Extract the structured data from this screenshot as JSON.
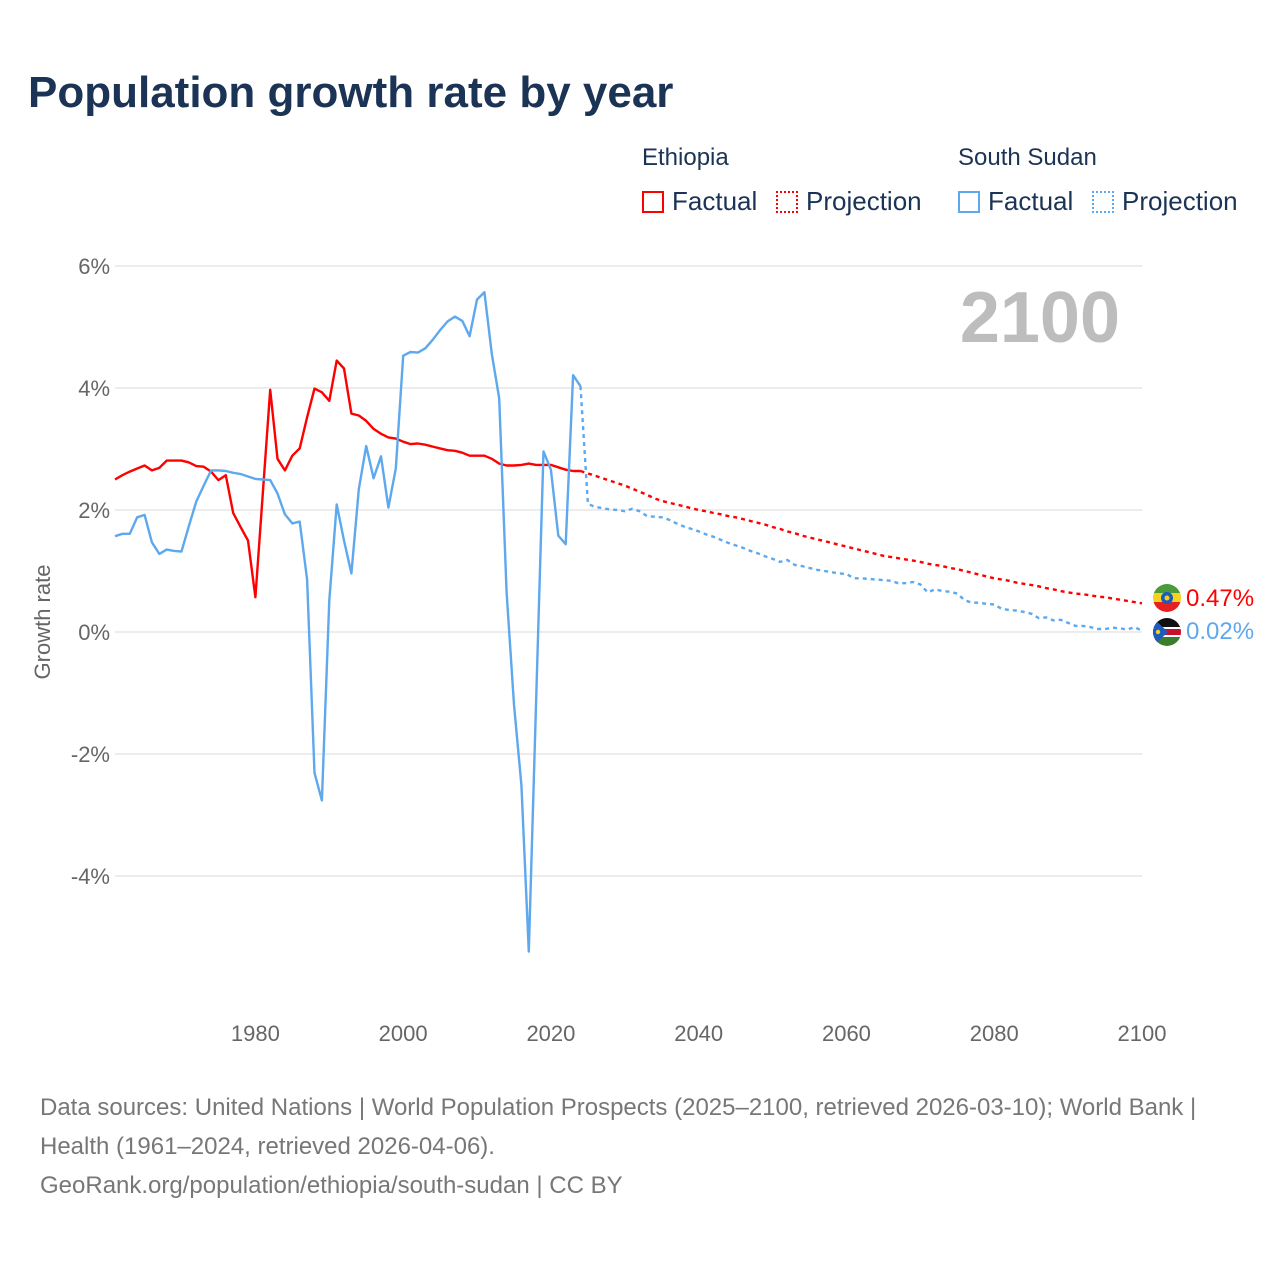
{
  "title": "Population growth rate by year",
  "legend": {
    "groups": [
      {
        "country": "Ethiopia",
        "factual": "Factual",
        "projection": "Projection",
        "color": "#ff0000"
      },
      {
        "country": "South Sudan",
        "factual": "Factual",
        "projection": "Projection",
        "color": "#5ea8ee"
      }
    ]
  },
  "year_display": "2100",
  "end_labels": {
    "ethiopia": "0.47%",
    "south_sudan": "0.02%"
  },
  "footer": {
    "line1": "Data sources: United Nations | World Population Prospects (2025–2100, retrieved 2026-03-10); World Bank | Health (1961–2024, retrieved 2026-04-06).",
    "line2": "GeoRank.org/population/ethiopia/south-sudan | CC BY"
  },
  "chart_data": {
    "type": "line",
    "title": "Population growth rate by year",
    "xlabel": "",
    "ylabel": "Growth rate",
    "xlim": [
      1961,
      2100
    ],
    "ylim": [
      -5.5,
      6.3
    ],
    "xticks": [
      1980,
      2000,
      2020,
      2040,
      2060,
      2080,
      2100
    ],
    "xtick_labels": [
      "1980",
      "2000",
      "2020",
      "2040",
      "2060",
      "2080",
      "2100"
    ],
    "yticks": [
      6,
      4,
      2,
      0,
      -2,
      -4
    ],
    "ytick_labels": [
      "6%",
      "4%",
      "2%",
      "0%",
      "-2%",
      "-4%"
    ],
    "grid": true,
    "legend_position": "top-right",
    "series": [
      {
        "name": "Ethiopia Factual",
        "color": "#ff0000",
        "style": "solid",
        "x_start": 1961,
        "values": [
          2.5,
          2.57,
          2.63,
          2.68,
          2.73,
          2.65,
          2.69,
          2.81,
          2.81,
          2.81,
          2.78,
          2.72,
          2.71,
          2.63,
          2.49,
          2.57,
          1.95,
          1.72,
          1.5,
          0.57,
          2.27,
          3.97,
          2.84,
          2.65,
          2.89,
          3.01,
          3.52,
          3.99,
          3.93,
          3.79,
          4.45,
          4.32,
          3.58,
          3.55,
          3.46,
          3.33,
          3.25,
          3.19,
          3.17,
          3.12,
          3.08,
          3.09,
          3.07,
          3.04,
          3.01,
          2.98,
          2.97,
          2.94,
          2.89,
          2.89,
          2.89,
          2.84,
          2.76,
          2.73,
          2.73,
          2.74,
          2.76,
          2.74,
          2.74,
          2.74,
          2.7,
          2.66,
          2.64,
          2.64
        ]
      },
      {
        "name": "Ethiopia Projection",
        "color": "#ff0000",
        "style": "dotted",
        "x_start": 2025,
        "values": [
          2.6,
          2.56,
          2.52,
          2.48,
          2.44,
          2.4,
          2.35,
          2.3,
          2.25,
          2.19,
          2.15,
          2.12,
          2.09,
          2.06,
          2.03,
          2.0,
          1.98,
          1.95,
          1.93,
          1.9,
          1.88,
          1.85,
          1.82,
          1.79,
          1.76,
          1.72,
          1.69,
          1.65,
          1.62,
          1.58,
          1.55,
          1.52,
          1.49,
          1.46,
          1.43,
          1.4,
          1.37,
          1.34,
          1.31,
          1.28,
          1.25,
          1.23,
          1.21,
          1.19,
          1.17,
          1.15,
          1.12,
          1.1,
          1.08,
          1.05,
          1.03,
          1.0,
          0.97,
          0.94,
          0.91,
          0.88,
          0.86,
          0.84,
          0.81,
          0.79,
          0.77,
          0.75,
          0.72,
          0.7,
          0.67,
          0.65,
          0.63,
          0.62,
          0.6,
          0.58,
          0.57,
          0.55,
          0.53,
          0.51,
          0.49,
          0.47
        ]
      },
      {
        "name": "South Sudan Factual",
        "color": "#5ea8ee",
        "style": "solid",
        "x_start": 1961,
        "values": [
          1.57,
          1.61,
          1.61,
          1.88,
          1.92,
          1.47,
          1.28,
          1.35,
          1.33,
          1.32,
          1.74,
          2.14,
          2.4,
          2.65,
          2.65,
          2.64,
          2.61,
          2.59,
          2.55,
          2.51,
          2.5,
          2.49,
          2.27,
          1.93,
          1.78,
          1.81,
          0.86,
          -2.31,
          -2.76,
          0.52,
          2.09,
          1.5,
          0.96,
          2.34,
          3.05,
          2.52,
          2.88,
          2.04,
          2.68,
          4.53,
          4.59,
          4.58,
          4.65,
          4.79,
          4.95,
          5.09,
          5.17,
          5.1,
          4.85,
          5.45,
          5.57,
          4.56,
          3.83,
          0.65,
          -1.19,
          -2.51,
          -5.24,
          -1.14,
          2.96,
          2.66,
          1.58,
          1.44,
          4.21,
          4.03
        ]
      },
      {
        "name": "South Sudan Projection",
        "color": "#5ea8ee",
        "style": "dotted",
        "x_start": 2025,
        "values": [
          2.1,
          2.05,
          2.03,
          2.01,
          2.0,
          1.98,
          2.02,
          1.98,
          1.9,
          1.89,
          1.88,
          1.84,
          1.78,
          1.73,
          1.69,
          1.65,
          1.6,
          1.56,
          1.51,
          1.46,
          1.42,
          1.38,
          1.33,
          1.29,
          1.24,
          1.2,
          1.15,
          1.18,
          1.1,
          1.08,
          1.05,
          1.02,
          1.0,
          0.98,
          0.96,
          0.95,
          0.88,
          0.88,
          0.87,
          0.86,
          0.85,
          0.84,
          0.8,
          0.8,
          0.82,
          0.78,
          0.65,
          0.7,
          0.67,
          0.66,
          0.63,
          0.52,
          0.48,
          0.48,
          0.46,
          0.45,
          0.38,
          0.36,
          0.35,
          0.33,
          0.3,
          0.23,
          0.24,
          0.19,
          0.2,
          0.15,
          0.1,
          0.1,
          0.08,
          0.05,
          0.05,
          0.07,
          0.06,
          0.04,
          0.08,
          0.02
        ]
      }
    ]
  }
}
